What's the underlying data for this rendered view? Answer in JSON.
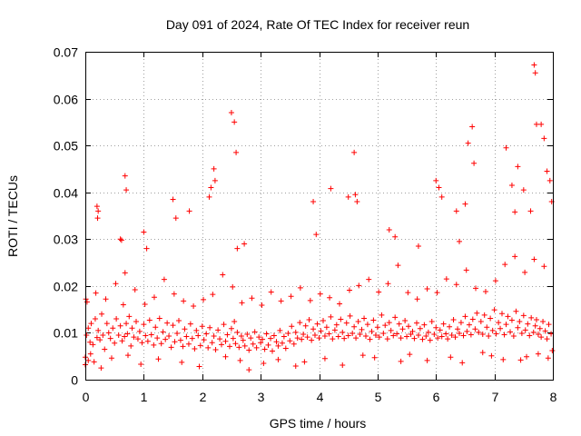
{
  "chart_data": {
    "type": "scatter",
    "title": "Day 091 of 2024, Rate Of TEC Index for receiver reun",
    "xlabel": "GPS time / hours",
    "ylabel": "ROTI / TECUs",
    "xlim": [
      0,
      8
    ],
    "ylim": [
      0,
      0.07
    ],
    "xticks": [
      "0",
      "1",
      "2",
      "3",
      "4",
      "5",
      "6",
      "7",
      "8"
    ],
    "yticks": [
      "0",
      "0.01",
      "0.02",
      "0.03",
      "0.04",
      "0.05",
      "0.06",
      "0.07"
    ],
    "grid": true,
    "marker": "+",
    "color": "#ff0000",
    "series": [
      {
        "name": "ROTI",
        "x": [
          0.02,
          0.05,
          0.08,
          0.1,
          0.13,
          0.17,
          0.2,
          0.22,
          0.25,
          0.28,
          0.3,
          0.33,
          0.37,
          0.4,
          0.43,
          0.47,
          0.5,
          0.53,
          0.57,
          0.6,
          0.63,
          0.65,
          0.67,
          0.7,
          0.72,
          0.75,
          0.78,
          0.8,
          0.83,
          0.87,
          0.9,
          0.93,
          0.97,
          1.0,
          1.03,
          1.07,
          1.1,
          1.13,
          1.17,
          1.2,
          1.23,
          1.27,
          1.3,
          1.33,
          1.37,
          1.4,
          1.43,
          1.47,
          1.5,
          1.53,
          1.57,
          1.6,
          1.63,
          1.67,
          1.7,
          1.73,
          1.77,
          1.8,
          1.83,
          1.87,
          1.9,
          1.93,
          1.97,
          2.0,
          2.03,
          2.07,
          2.1,
          2.13,
          2.17,
          2.2,
          2.23,
          2.27,
          2.3,
          2.33,
          2.37,
          2.4,
          2.43,
          2.47,
          2.5,
          2.53,
          2.55,
          2.57,
          2.6,
          2.63,
          2.67,
          2.7,
          2.73,
          2.77,
          2.8,
          2.83,
          2.87,
          2.9,
          2.93,
          2.97,
          3.0,
          3.03,
          3.07,
          3.1,
          3.13,
          3.17,
          3.2,
          3.23,
          3.27,
          3.3,
          3.33,
          3.37,
          3.4,
          3.43,
          3.47,
          3.5,
          3.53,
          3.57,
          3.6,
          3.63,
          3.67,
          3.7,
          3.73,
          3.77,
          3.8,
          3.83,
          3.87,
          3.9,
          3.93,
          3.97,
          4.0,
          4.03,
          4.07,
          4.1,
          4.13,
          4.17,
          4.2,
          4.23,
          4.27,
          4.3,
          4.33,
          4.37,
          4.4,
          4.43,
          4.47,
          4.5,
          4.53,
          4.57,
          4.6,
          4.63,
          4.67,
          4.7,
          4.73,
          4.77,
          4.8,
          4.83,
          4.87,
          4.9,
          4.93,
          4.97,
          5.0,
          5.03,
          5.07,
          5.1,
          5.13,
          5.17,
          5.2,
          5.23,
          5.27,
          5.3,
          5.33,
          5.37,
          5.4,
          5.43,
          5.47,
          5.5,
          5.53,
          5.57,
          5.6,
          5.63,
          5.67,
          5.7,
          5.73,
          5.77,
          5.8,
          5.83,
          5.87,
          5.9,
          5.93,
          5.97,
          6.0,
          6.03,
          6.07,
          6.1,
          6.13,
          6.17,
          6.2,
          6.23,
          6.27,
          6.3,
          6.33,
          6.37,
          6.4,
          6.43,
          6.47,
          6.5,
          6.53,
          6.57,
          6.6,
          6.63,
          6.67,
          6.7,
          6.73,
          6.77,
          6.8,
          6.83,
          6.87,
          6.9,
          6.93,
          6.97,
          7.0,
          7.03,
          7.07,
          7.1,
          7.13,
          7.17,
          7.2,
          7.23,
          7.27,
          7.3,
          7.33,
          7.37,
          7.4,
          7.43,
          7.47,
          7.5,
          7.53,
          7.57,
          7.6,
          7.63,
          7.67,
          7.7,
          7.72,
          7.75,
          7.78,
          7.8,
          7.83,
          7.87,
          7.9,
          7.93,
          7.97,
          0.03,
          0.18,
          0.35,
          0.52,
          0.68,
          0.85,
          1.02,
          1.18,
          1.35,
          1.52,
          1.68,
          1.85,
          2.02,
          2.18,
          2.35,
          2.52,
          2.68,
          2.85,
          3.02,
          3.18,
          3.35,
          3.52,
          3.68,
          3.85,
          4.02,
          4.18,
          4.35,
          4.52,
          4.68,
          4.85,
          5.02,
          5.18,
          5.35,
          5.52,
          5.68,
          5.85,
          6.02,
          6.18,
          6.35,
          6.52,
          6.68,
          6.85,
          7.02,
          7.18,
          7.35,
          7.52,
          7.68,
          7.85,
          0.2,
          0.21,
          0.22,
          0.6,
          0.62,
          0.68,
          0.7,
          1.0,
          1.05,
          1.5,
          1.55,
          1.78,
          2.12,
          2.15,
          2.2,
          2.22,
          2.5,
          2.55,
          2.58,
          2.6,
          2.72,
          3.9,
          3.95,
          4.2,
          4.5,
          4.6,
          4.62,
          4.65,
          5.2,
          5.3,
          5.7,
          6.0,
          6.05,
          6.1,
          6.35,
          6.4,
          6.5,
          6.55,
          6.62,
          6.65,
          7.2,
          7.3,
          7.35,
          7.4,
          7.5,
          7.62,
          7.68,
          7.7,
          7.72,
          7.8,
          7.85,
          7.9,
          7.95,
          7.98,
          0.0,
          0.0,
          0.01,
          0.05,
          0.09,
          0.15,
          0.27,
          0.45,
          0.73,
          0.95,
          1.25,
          1.65,
          1.95,
          2.4,
          2.65,
          2.8,
          3.05,
          3.3,
          3.6,
          3.75,
          4.1,
          4.4,
          4.75,
          4.95,
          5.4,
          5.55,
          5.85,
          6.25,
          6.45,
          6.8,
          6.95,
          7.15,
          7.45,
          7.55,
          7.75,
          7.92,
          7.99
        ],
        "y": [
          0.0095,
          0.011,
          0.008,
          0.012,
          0.0075,
          0.013,
          0.009,
          0.0105,
          0.0085,
          0.014,
          0.0095,
          0.0065,
          0.012,
          0.01,
          0.0088,
          0.011,
          0.0078,
          0.013,
          0.0095,
          0.0115,
          0.0083,
          0.016,
          0.0092,
          0.012,
          0.0098,
          0.0135,
          0.0072,
          0.011,
          0.0091,
          0.0124,
          0.0087,
          0.0103,
          0.0079,
          0.0118,
          0.0094,
          0.0082,
          0.0127,
          0.0096,
          0.0074,
          0.0112,
          0.0089,
          0.0131,
          0.0077,
          0.0102,
          0.0086,
          0.0121,
          0.0093,
          0.0069,
          0.0116,
          0.0081,
          0.0099,
          0.0126,
          0.0084,
          0.0071,
          0.0108,
          0.0092,
          0.0076,
          0.0119,
          0.0088,
          0.0066,
          0.0105,
          0.0094,
          0.0073,
          0.0114,
          0.0085,
          0.0098,
          0.0068,
          0.0111,
          0.0079,
          0.0093,
          0.0064,
          0.0106,
          0.0087,
          0.0075,
          0.0118,
          0.0082,
          0.0096,
          0.0071,
          0.0109,
          0.0088,
          0.0124,
          0.0077,
          0.0101,
          0.0069,
          0.0093,
          0.0084,
          0.0072,
          0.0097,
          0.0063,
          0.0089,
          0.0076,
          0.0102,
          0.0068,
          0.0091,
          0.0079,
          0.0086,
          0.0065,
          0.0098,
          0.0074,
          0.0088,
          0.0061,
          0.0094,
          0.0081,
          0.0072,
          0.0105,
          0.0078,
          0.0092,
          0.0067,
          0.0099,
          0.0083,
          0.0114,
          0.0076,
          0.0101,
          0.0089,
          0.0122,
          0.0086,
          0.0097,
          0.0115,
          0.0091,
          0.0128,
          0.0084,
          0.0108,
          0.0095,
          0.0119,
          0.0089,
          0.0104,
          0.0126,
          0.0093,
          0.0112,
          0.0098,
          0.0134,
          0.0087,
          0.0106,
          0.0117,
          0.0092,
          0.0129,
          0.0101,
          0.0088,
          0.0121,
          0.0094,
          0.0136,
          0.0099,
          0.0113,
          0.0089,
          0.0124,
          0.0097,
          0.0107,
          0.0131,
          0.0093,
          0.0118,
          0.0086,
          0.0103,
          0.0127,
          0.0095,
          0.0112,
          0.0091,
          0.0138,
          0.0099,
          0.0116,
          0.0087,
          0.0122,
          0.0105,
          0.0094,
          0.0133,
          0.0098,
          0.0119,
          0.0089,
          0.0108,
          0.0126,
          0.0092,
          0.0114,
          0.0097,
          0.0103,
          0.0088,
          0.0121,
          0.0095,
          0.0109,
          0.0086,
          0.0117,
          0.0093,
          0.0101,
          0.0084,
          0.0124,
          0.0097,
          0.0111,
          0.0089,
          0.0106,
          0.0092,
          0.0119,
          0.0098,
          0.0087,
          0.0113,
          0.0095,
          0.0128,
          0.0091,
          0.0108,
          0.0099,
          0.0122,
          0.0094,
          0.0135,
          0.0103,
          0.0117,
          0.0096,
          0.0129,
          0.0108,
          0.0142,
          0.0101,
          0.0124,
          0.0097,
          0.0138,
          0.0112,
          0.0093,
          0.0131,
          0.0105,
          0.0149,
          0.0098,
          0.0122,
          0.0109,
          0.0141,
          0.0096,
          0.0118,
          0.0135,
          0.0102,
          0.0127,
          0.0093,
          0.0146,
          0.0111,
          0.0124,
          0.0099,
          0.0137,
          0.0106,
          0.0119,
          0.0094,
          0.0132,
          0.0101,
          0.0115,
          0.0128,
          0.0097,
          0.0109,
          0.0091,
          0.0124,
          0.0104,
          0.0087,
          0.0118,
          0.0098,
          0.0166,
          0.0185,
          0.0172,
          0.0205,
          0.0228,
          0.0192,
          0.0161,
          0.0176,
          0.0214,
          0.0183,
          0.0168,
          0.0157,
          0.0171,
          0.0182,
          0.0224,
          0.0198,
          0.0164,
          0.0174,
          0.0159,
          0.0187,
          0.0168,
          0.0178,
          0.0196,
          0.0169,
          0.0183,
          0.0175,
          0.0162,
          0.0191,
          0.0201,
          0.0214,
          0.0187,
          0.0205,
          0.0244,
          0.0186,
          0.0172,
          0.0194,
          0.0186,
          0.0215,
          0.0203,
          0.0234,
          0.0195,
          0.0188,
          0.0211,
          0.0246,
          0.0263,
          0.0229,
          0.0257,
          0.0242,
          0.037,
          0.0345,
          0.036,
          0.03,
          0.0298,
          0.0435,
          0.0405,
          0.0315,
          0.028,
          0.0385,
          0.0345,
          0.036,
          0.039,
          0.041,
          0.045,
          0.0425,
          0.057,
          0.055,
          0.0485,
          0.028,
          0.029,
          0.038,
          0.031,
          0.0408,
          0.039,
          0.0485,
          0.0395,
          0.038,
          0.032,
          0.0305,
          0.0285,
          0.0425,
          0.041,
          0.039,
          0.036,
          0.0295,
          0.0375,
          0.0505,
          0.054,
          0.0462,
          0.0495,
          0.0415,
          0.0358,
          0.0455,
          0.0405,
          0.036,
          0.0672,
          0.0655,
          0.0545,
          0.0545,
          0.0515,
          0.0445,
          0.0425,
          0.038,
          0.0048,
          0.0032,
          0.0172,
          0.0041,
          0.0055,
          0.0038,
          0.0025,
          0.0046,
          0.0052,
          0.0033,
          0.0044,
          0.0037,
          0.0028,
          0.0049,
          0.0041,
          0.0021,
          0.0035,
          0.0043,
          0.0029,
          0.0038,
          0.0045,
          0.0031,
          0.0052,
          0.0047,
          0.0039,
          0.0054,
          0.0041,
          0.0048,
          0.0036,
          0.0058,
          0.0051,
          0.0043,
          0.0042,
          0.0049,
          0.0055,
          0.0046,
          0.0062
        ]
      }
    ]
  }
}
